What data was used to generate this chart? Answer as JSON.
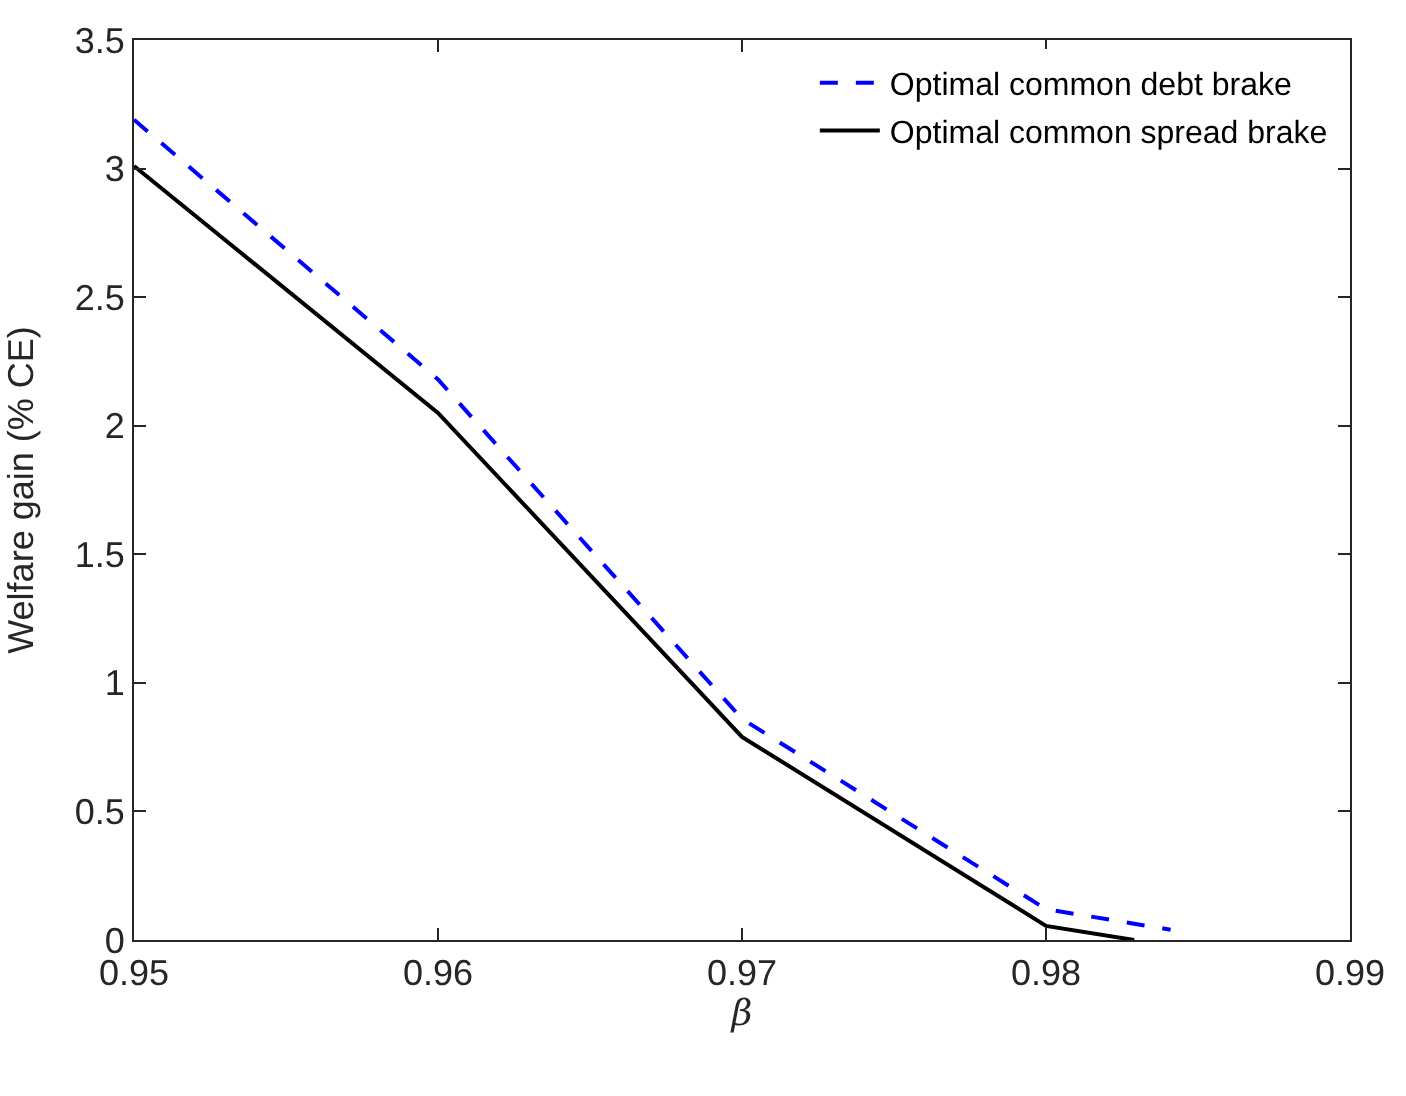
{
  "chart_data": {
    "type": "line",
    "xlabel": "β",
    "ylabel": "Welfare gain (% CE)",
    "xlim": [
      0.95,
      0.99
    ],
    "xticks": [
      0.95,
      0.96,
      0.97,
      0.98,
      0.99
    ],
    "ylim": [
      0,
      3.5
    ],
    "yticks": [
      0,
      0.5,
      1,
      1.5,
      2,
      2.5,
      3,
      3.5
    ],
    "legend": "top right",
    "series": [
      {
        "name": "Optimal common debt brake",
        "color": "#0000ff",
        "line_style": "dashed",
        "x": [
          0.95,
          0.96,
          0.97,
          0.98,
          0.9841
        ],
        "values": [
          3.19,
          2.18,
          0.86,
          0.12,
          0.04
        ]
      },
      {
        "name": "Optimal common spread brake",
        "color": "#000000",
        "line_style": "solid",
        "x": [
          0.95,
          0.96,
          0.97,
          0.98,
          0.9829
        ],
        "values": [
          3.01,
          2.05,
          0.79,
          0.055,
          0.0
        ]
      }
    ]
  }
}
